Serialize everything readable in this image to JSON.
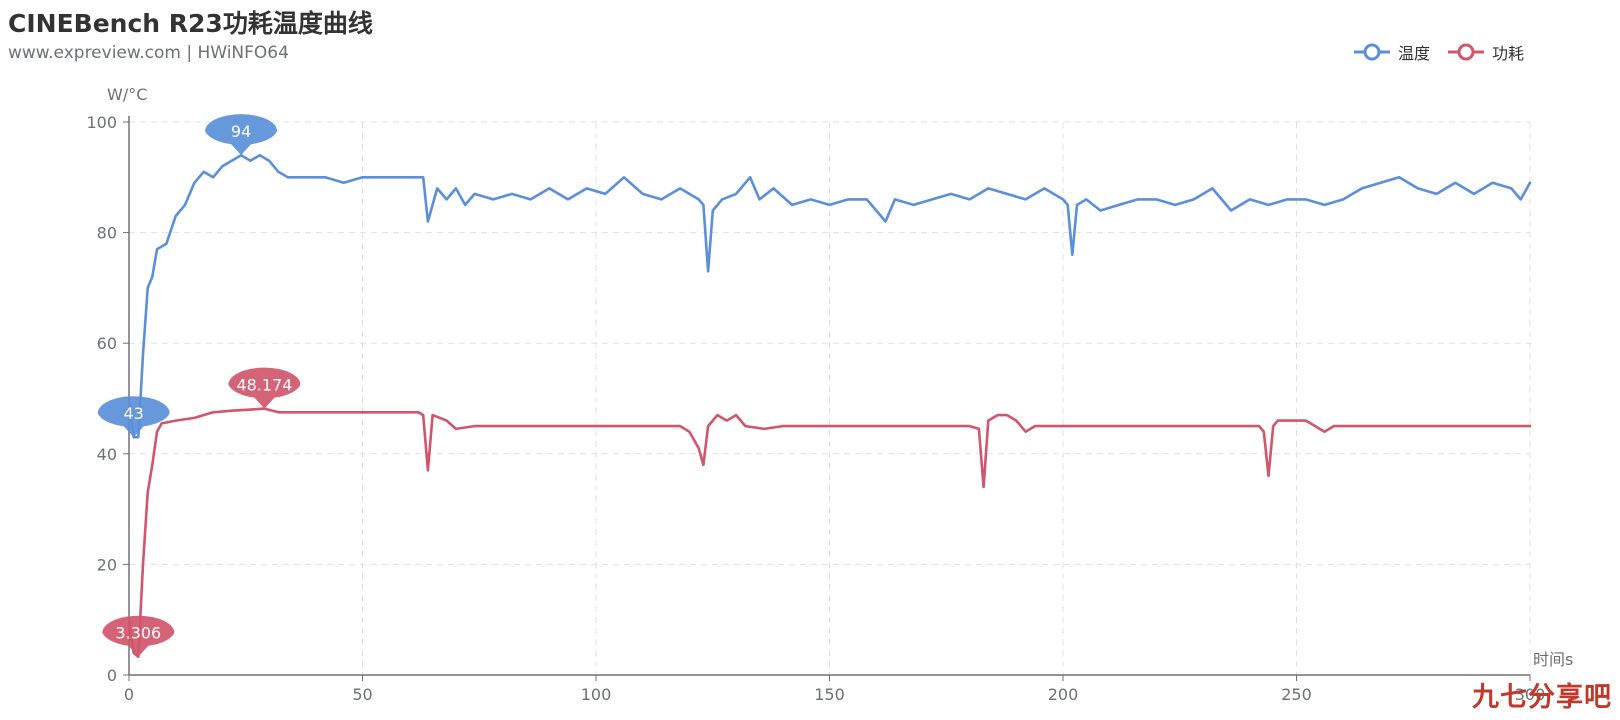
{
  "colors": {
    "temperature": "#5b8fd9",
    "power": "#d0566b",
    "axis": "#6e7079",
    "grid": "#e0e0e0"
  },
  "chart_data": {
    "type": "line",
    "title": "CINEBench R23功耗温度曲线",
    "subtitle": "www.expreview.com | HWiNFO64",
    "ylabel": "W/°C",
    "xlabel": "时间s",
    "xlim": [
      0,
      300
    ],
    "ylim": [
      0,
      100
    ],
    "xticks": [
      "0",
      "50",
      "100",
      "150",
      "200",
      "250",
      "300"
    ],
    "yticks": [
      "0",
      "20",
      "40",
      "60",
      "80",
      "100"
    ],
    "grid": true,
    "legend_position": "top-right",
    "series": [
      {
        "name": "温度",
        "color": "#5b8fd9",
        "points": [
          [
            0,
            49
          ],
          [
            1,
            43
          ],
          [
            2,
            43
          ],
          [
            3,
            58
          ],
          [
            4,
            70
          ],
          [
            5,
            72
          ],
          [
            6,
            77
          ],
          [
            8,
            78
          ],
          [
            10,
            83
          ],
          [
            12,
            85
          ],
          [
            14,
            89
          ],
          [
            16,
            91
          ],
          [
            18,
            90
          ],
          [
            20,
            92
          ],
          [
            22,
            93
          ],
          [
            24,
            94
          ],
          [
            26,
            93
          ],
          [
            28,
            94
          ],
          [
            30,
            93
          ],
          [
            32,
            91
          ],
          [
            34,
            90
          ],
          [
            38,
            90
          ],
          [
            42,
            90
          ],
          [
            46,
            89
          ],
          [
            50,
            90
          ],
          [
            54,
            90
          ],
          [
            58,
            90
          ],
          [
            62,
            90
          ],
          [
            63,
            90
          ],
          [
            64,
            82
          ],
          [
            66,
            88
          ],
          [
            68,
            86
          ],
          [
            70,
            88
          ],
          [
            72,
            85
          ],
          [
            74,
            87
          ],
          [
            78,
            86
          ],
          [
            82,
            87
          ],
          [
            86,
            86
          ],
          [
            90,
            88
          ],
          [
            94,
            86
          ],
          [
            98,
            88
          ],
          [
            102,
            87
          ],
          [
            106,
            90
          ],
          [
            110,
            87
          ],
          [
            114,
            86
          ],
          [
            118,
            88
          ],
          [
            122,
            86
          ],
          [
            123,
            85
          ],
          [
            124,
            73
          ],
          [
            125,
            84
          ],
          [
            127,
            86
          ],
          [
            130,
            87
          ],
          [
            133,
            90
          ],
          [
            135,
            86
          ],
          [
            138,
            88
          ],
          [
            142,
            85
          ],
          [
            146,
            86
          ],
          [
            150,
            85
          ],
          [
            154,
            86
          ],
          [
            158,
            86
          ],
          [
            162,
            82
          ],
          [
            164,
            86
          ],
          [
            168,
            85
          ],
          [
            172,
            86
          ],
          [
            176,
            87
          ],
          [
            180,
            86
          ],
          [
            184,
            88
          ],
          [
            188,
            87
          ],
          [
            192,
            86
          ],
          [
            196,
            88
          ],
          [
            200,
            86
          ],
          [
            201,
            85
          ],
          [
            202,
            76
          ],
          [
            203,
            85
          ],
          [
            205,
            86
          ],
          [
            208,
            84
          ],
          [
            212,
            85
          ],
          [
            216,
            86
          ],
          [
            220,
            86
          ],
          [
            224,
            85
          ],
          [
            228,
            86
          ],
          [
            232,
            88
          ],
          [
            236,
            84
          ],
          [
            240,
            86
          ],
          [
            244,
            85
          ],
          [
            248,
            86
          ],
          [
            252,
            86
          ],
          [
            256,
            85
          ],
          [
            260,
            86
          ],
          [
            264,
            88
          ],
          [
            268,
            89
          ],
          [
            272,
            90
          ],
          [
            276,
            88
          ],
          [
            280,
            87
          ],
          [
            284,
            89
          ],
          [
            288,
            87
          ],
          [
            292,
            89
          ],
          [
            296,
            88
          ],
          [
            298,
            86
          ],
          [
            300,
            89
          ]
        ]
      },
      {
        "name": "功耗",
        "color": "#d0566b",
        "points": [
          [
            0,
            10
          ],
          [
            1,
            4
          ],
          [
            2,
            3.306
          ],
          [
            3,
            20
          ],
          [
            4,
            33
          ],
          [
            5,
            38
          ],
          [
            6,
            44
          ],
          [
            7,
            45.5
          ],
          [
            10,
            46
          ],
          [
            14,
            46.5
          ],
          [
            18,
            47.5
          ],
          [
            22,
            47.8
          ],
          [
            26,
            48
          ],
          [
            29,
            48.174
          ],
          [
            32,
            47.5
          ],
          [
            38,
            47.5
          ],
          [
            44,
            47.5
          ],
          [
            50,
            47.5
          ],
          [
            56,
            47.5
          ],
          [
            62,
            47.5
          ],
          [
            63,
            47
          ],
          [
            64,
            37
          ],
          [
            65,
            47
          ],
          [
            68,
            46
          ],
          [
            70,
            44.5
          ],
          [
            74,
            45
          ],
          [
            78,
            45
          ],
          [
            82,
            45
          ],
          [
            86,
            45
          ],
          [
            90,
            45
          ],
          [
            94,
            45
          ],
          [
            98,
            45
          ],
          [
            102,
            45
          ],
          [
            106,
            45
          ],
          [
            110,
            45
          ],
          [
            114,
            45
          ],
          [
            118,
            45
          ],
          [
            120,
            44
          ],
          [
            122,
            41
          ],
          [
            123,
            38
          ],
          [
            124,
            45
          ],
          [
            126,
            47
          ],
          [
            128,
            46
          ],
          [
            130,
            47
          ],
          [
            132,
            45
          ],
          [
            136,
            44.5
          ],
          [
            140,
            45
          ],
          [
            144,
            45
          ],
          [
            148,
            45
          ],
          [
            152,
            45
          ],
          [
            156,
            45
          ],
          [
            160,
            45
          ],
          [
            164,
            45
          ],
          [
            168,
            45
          ],
          [
            172,
            45
          ],
          [
            176,
            45
          ],
          [
            180,
            45
          ],
          [
            182,
            44.5
          ],
          [
            183,
            34
          ],
          [
            184,
            46
          ],
          [
            186,
            47
          ],
          [
            188,
            47
          ],
          [
            190,
            46
          ],
          [
            192,
            44
          ],
          [
            194,
            45
          ],
          [
            198,
            45
          ],
          [
            202,
            45
          ],
          [
            206,
            45
          ],
          [
            210,
            45
          ],
          [
            214,
            45
          ],
          [
            218,
            45
          ],
          [
            222,
            45
          ],
          [
            226,
            45
          ],
          [
            230,
            45
          ],
          [
            234,
            45
          ],
          [
            238,
            45
          ],
          [
            242,
            45
          ],
          [
            243,
            44
          ],
          [
            244,
            36
          ],
          [
            245,
            45
          ],
          [
            246,
            46
          ],
          [
            250,
            46
          ],
          [
            252,
            46
          ],
          [
            254,
            45
          ],
          [
            256,
            44
          ],
          [
            258,
            45
          ],
          [
            262,
            45
          ],
          [
            266,
            45
          ],
          [
            270,
            45
          ],
          [
            274,
            45
          ],
          [
            278,
            45
          ],
          [
            282,
            45
          ],
          [
            286,
            45
          ],
          [
            290,
            45
          ],
          [
            294,
            45
          ],
          [
            298,
            45
          ],
          [
            300,
            45
          ]
        ]
      }
    ],
    "annotations": [
      {
        "series": "温度",
        "type": "max",
        "x": 24,
        "y": 94,
        "label": "94"
      },
      {
        "series": "温度",
        "type": "min",
        "x": 1,
        "y": 43,
        "label": "43"
      },
      {
        "series": "功耗",
        "type": "max",
        "x": 29,
        "y": 48.174,
        "label": "48.174"
      },
      {
        "series": "功耗",
        "type": "min",
        "x": 2,
        "y": 3.306,
        "label": "3.306"
      }
    ]
  },
  "watermark": "九七分享吧"
}
